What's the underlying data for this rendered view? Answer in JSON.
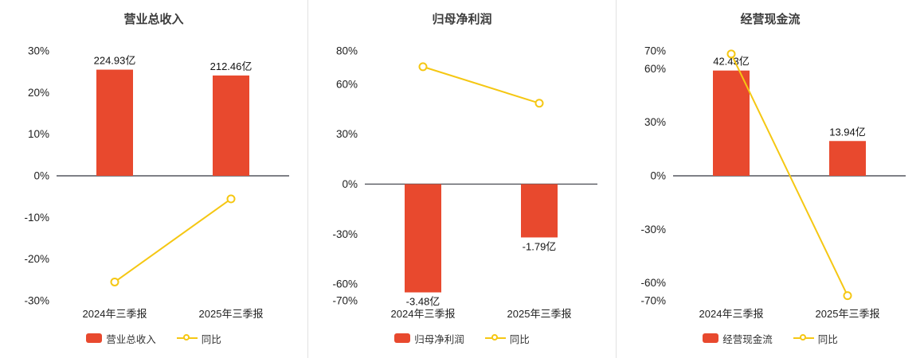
{
  "page": {
    "background": "#ffffff"
  },
  "colors": {
    "bar": "#E8492E",
    "line": "#F5C713",
    "zero_axis": "#54565E",
    "title_text": "#3C3C3C",
    "axis_text": "#1F1F1F",
    "divider": "#E2E2E2",
    "marker_fill": "#FFFFFF"
  },
  "chart_data": [
    {
      "type": "bar+line",
      "title": "营业总收入",
      "categories": [
        "2024年三季报",
        "2025年三季报"
      ],
      "ylim": [
        -30,
        30
      ],
      "yticks": [
        30,
        20,
        10,
        0,
        -10,
        -20,
        -30
      ],
      "ytick_suffix": "%",
      "grid": false,
      "bar_series": {
        "name": "营业总收入",
        "unit": "亿",
        "values": [
          224.93,
          212.46
        ],
        "value_labels": [
          "224.93亿",
          "212.46亿"
        ],
        "display_heights_pct": [
          25.5,
          24.1
        ]
      },
      "line_series": {
        "name": "同比",
        "values_pct": [
          -25.5,
          -5.54
        ]
      },
      "legend": [
        {
          "swatch": "bar",
          "label": "营业总收入"
        },
        {
          "swatch": "line",
          "label": "同比"
        }
      ],
      "legend_position": "bottom"
    },
    {
      "type": "bar+line",
      "title": "归母净利润",
      "categories": [
        "2024年三季报",
        "2025年三季报"
      ],
      "ylim": [
        -70,
        80
      ],
      "yticks": [
        80,
        60,
        30,
        0,
        -30,
        -60,
        -70
      ],
      "ytick_suffix": "%",
      "grid": false,
      "bar_series": {
        "name": "归母净利润",
        "unit": "亿",
        "values": [
          -3.48,
          -1.79
        ],
        "value_labels": [
          "-3.48亿",
          "-1.79亿"
        ],
        "display_heights_pct": [
          -65,
          -32
        ]
      },
      "line_series": {
        "name": "同比",
        "values_pct": [
          70.5,
          48.6
        ]
      },
      "legend": [
        {
          "swatch": "bar",
          "label": "归母净利润"
        },
        {
          "swatch": "line",
          "label": "同比"
        }
      ],
      "legend_position": "bottom"
    },
    {
      "type": "bar+line",
      "title": "经营现金流",
      "categories": [
        "2024年三季报",
        "2025年三季报"
      ],
      "ylim": [
        -70,
        70
      ],
      "yticks": [
        70,
        60,
        30,
        0,
        -30,
        -60,
        -70
      ],
      "ytick_suffix": "%",
      "grid": false,
      "bar_series": {
        "name": "经营现金流",
        "unit": "亿",
        "values": [
          42.43,
          13.94
        ],
        "value_labels": [
          "42.43亿",
          "13.94亿"
        ],
        "display_heights_pct": [
          59,
          19.5
        ]
      },
      "line_series": {
        "name": "同比",
        "values_pct": [
          68.3,
          -67.15
        ]
      },
      "legend": [
        {
          "swatch": "bar",
          "label": "经营现金流"
        },
        {
          "swatch": "line",
          "label": "同比"
        }
      ],
      "legend_position": "bottom"
    }
  ]
}
